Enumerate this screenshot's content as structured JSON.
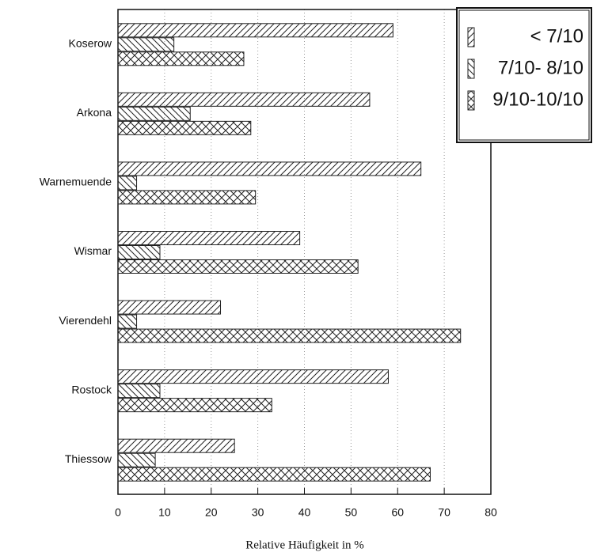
{
  "chart_data": {
    "type": "bar",
    "orientation": "horizontal",
    "xlabel": "Relative Häufigkeit in %",
    "categories": [
      "Koserow",
      "Arkona",
      "Warnemuende",
      "Wismar",
      "Vierendehl",
      "Rostock",
      "Thiessow"
    ],
    "series": [
      {
        "name": "< 7/10",
        "color": "#222",
        "values": [
          59,
          54,
          65,
          39,
          22,
          58,
          25
        ]
      },
      {
        "name": "7/10- 8/10",
        "color": "#222",
        "values": [
          12,
          15.5,
          4,
          9,
          4,
          9,
          8
        ]
      },
      {
        "name": "9/10-10/10",
        "color": "#222",
        "values": [
          27,
          28.5,
          29.5,
          51.5,
          73.5,
          33,
          67
        ]
      }
    ],
    "xlim": [
      0,
      80
    ],
    "xticks": [
      0,
      10,
      20,
      30,
      40,
      50,
      60,
      70,
      80
    ],
    "grid": true,
    "legend": "upper right"
  }
}
